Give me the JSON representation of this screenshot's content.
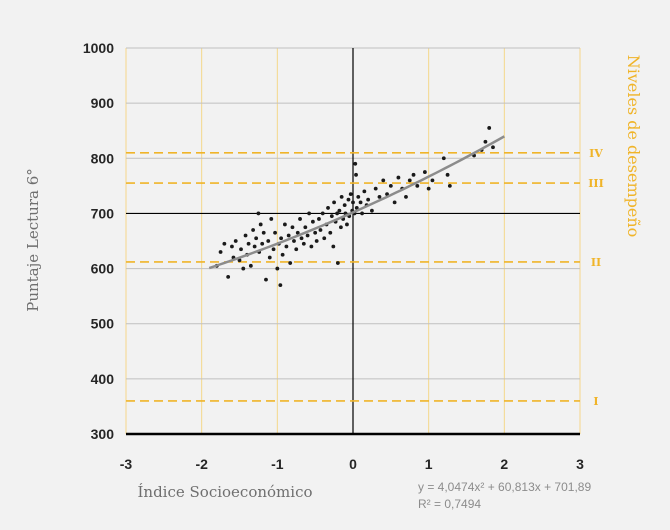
{
  "chart_data": {
    "type": "scatter",
    "title": "",
    "xlabel": "Índice Socioeconómico",
    "ylabel": "Puntaje Lectura 6°",
    "secondary_ylabel": "Niveles de desempeño",
    "xlim": [
      -3,
      3
    ],
    "ylim": [
      300,
      1000
    ],
    "x_ticks": [
      "-3",
      "-2",
      "-1",
      "0",
      "1",
      "2",
      "3"
    ],
    "y_ticks": [
      "300",
      "400",
      "500",
      "600",
      "700",
      "800",
      "900",
      "1000"
    ],
    "grid": {
      "vertical": true,
      "horizontal": true
    },
    "levels": [
      {
        "label": "I",
        "y": 360
      },
      {
        "label": "II",
        "y": 612
      },
      {
        "label": "III",
        "y": 755
      },
      {
        "label": "IV",
        "y": 810
      }
    ],
    "trendline": {
      "type": "polynomial",
      "a": 4.0474,
      "b": 60.813,
      "c": 701.89,
      "x_range": [
        -1.9,
        2.0
      ],
      "equation": "y = 4,0474x² + 60,813x + 701,89",
      "r2": "R² = 0,7494"
    },
    "points": [
      [
        -1.8,
        605
      ],
      [
        -1.75,
        630
      ],
      [
        -1.7,
        645
      ],
      [
        -1.65,
        585
      ],
      [
        -1.6,
        640
      ],
      [
        -1.58,
        620
      ],
      [
        -1.55,
        650
      ],
      [
        -1.5,
        615
      ],
      [
        -1.48,
        635
      ],
      [
        -1.45,
        600
      ],
      [
        -1.42,
        660
      ],
      [
        -1.4,
        625
      ],
      [
        -1.38,
        645
      ],
      [
        -1.35,
        605
      ],
      [
        -1.32,
        670
      ],
      [
        -1.3,
        640
      ],
      [
        -1.28,
        655
      ],
      [
        -1.25,
        700
      ],
      [
        -1.24,
        630
      ],
      [
        -1.22,
        680
      ],
      [
        -1.2,
        645
      ],
      [
        -1.18,
        665
      ],
      [
        -1.15,
        580
      ],
      [
        -1.12,
        650
      ],
      [
        -1.1,
        620
      ],
      [
        -1.08,
        690
      ],
      [
        -1.05,
        635
      ],
      [
        -1.03,
        665
      ],
      [
        -1.0,
        600
      ],
      [
        -0.98,
        645
      ],
      [
        -0.96,
        570
      ],
      [
        -0.95,
        655
      ],
      [
        -0.93,
        625
      ],
      [
        -0.9,
        680
      ],
      [
        -0.88,
        640
      ],
      [
        -0.85,
        660
      ],
      [
        -0.83,
        610
      ],
      [
        -0.8,
        675
      ],
      [
        -0.78,
        650
      ],
      [
        -0.75,
        635
      ],
      [
        -0.73,
        665
      ],
      [
        -0.7,
        690
      ],
      [
        -0.68,
        655
      ],
      [
        -0.65,
        645
      ],
      [
        -0.63,
        675
      ],
      [
        -0.6,
        660
      ],
      [
        -0.58,
        700
      ],
      [
        -0.55,
        640
      ],
      [
        -0.53,
        685
      ],
      [
        -0.5,
        665
      ],
      [
        -0.48,
        650
      ],
      [
        -0.45,
        690
      ],
      [
        -0.43,
        670
      ],
      [
        -0.4,
        700
      ],
      [
        -0.38,
        655
      ],
      [
        -0.35,
        680
      ],
      [
        -0.33,
        710
      ],
      [
        -0.3,
        665
      ],
      [
        -0.28,
        695
      ],
      [
        -0.26,
        640
      ],
      [
        -0.25,
        720
      ],
      [
        -0.23,
        685
      ],
      [
        -0.21,
        700
      ],
      [
        -0.2,
        610
      ],
      [
        -0.18,
        705
      ],
      [
        -0.16,
        675
      ],
      [
        -0.15,
        730
      ],
      [
        -0.13,
        690
      ],
      [
        -0.11,
        715
      ],
      [
        -0.1,
        700
      ],
      [
        -0.08,
        680
      ],
      [
        -0.06,
        725
      ],
      [
        -0.05,
        695
      ],
      [
        -0.03,
        735
      ],
      [
        -0.01,
        705
      ],
      [
        0.0,
        720
      ],
      [
        0.02,
        700
      ],
      [
        0.03,
        790
      ],
      [
        0.04,
        770
      ],
      [
        0.05,
        710
      ],
      [
        0.07,
        730
      ],
      [
        0.1,
        720
      ],
      [
        0.12,
        700
      ],
      [
        0.15,
        740
      ],
      [
        0.18,
        715
      ],
      [
        0.2,
        725
      ],
      [
        0.25,
        705
      ],
      [
        0.3,
        745
      ],
      [
        0.35,
        730
      ],
      [
        0.4,
        760
      ],
      [
        0.45,
        735
      ],
      [
        0.5,
        750
      ],
      [
        0.55,
        720
      ],
      [
        0.6,
        765
      ],
      [
        0.65,
        745
      ],
      [
        0.7,
        730
      ],
      [
        0.75,
        760
      ],
      [
        0.8,
        770
      ],
      [
        0.85,
        750
      ],
      [
        0.95,
        775
      ],
      [
        1.0,
        745
      ],
      [
        1.05,
        760
      ],
      [
        1.2,
        800
      ],
      [
        1.25,
        770
      ],
      [
        1.28,
        750
      ],
      [
        1.6,
        805
      ],
      [
        1.7,
        815
      ],
      [
        1.75,
        830
      ],
      [
        1.8,
        855
      ],
      [
        1.85,
        820
      ]
    ],
    "colors": {
      "background": "#f2f2f2",
      "points": "#1a1a1a",
      "trendline": "#8c8c8c",
      "vertical_grid": "#f5d78a",
      "horizontal_grid": "#c0c0c0",
      "levels": "#f0b429",
      "axes": "#000000"
    }
  }
}
